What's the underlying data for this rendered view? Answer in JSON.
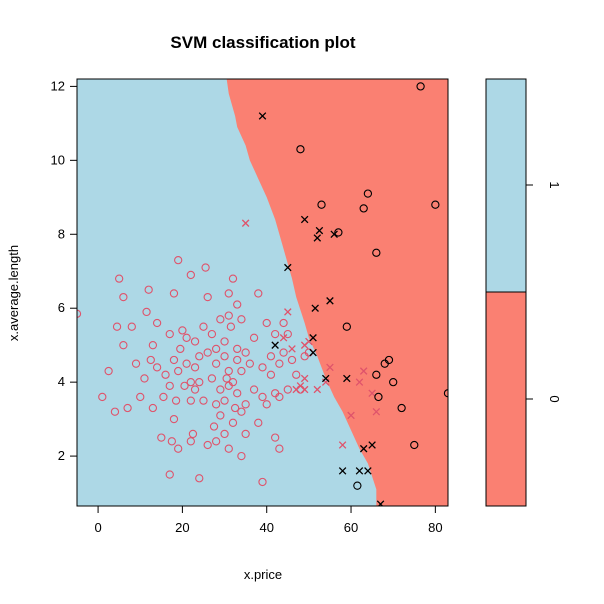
{
  "chart_data": {
    "type": "scatter",
    "title": "SVM classification plot",
    "xlabel": "x.price",
    "ylabel": "x.average.length",
    "xlim": [
      -5,
      83
    ],
    "ylim": [
      0.65,
      12.2
    ],
    "x_ticks": [
      0,
      20,
      40,
      60,
      80
    ],
    "y_ticks": [
      2,
      4,
      6,
      8,
      10,
      12
    ],
    "grid": false,
    "legend": {
      "position": "right",
      "labels": [
        "1",
        "0"
      ],
      "colors": [
        "#add8e6",
        "#fa8072"
      ]
    },
    "colors": {
      "class_1_region": "#add8e6",
      "class_0_region": "#fa8072",
      "class_1_points": "#df536b",
      "class_0_points": "#000000"
    },
    "decision_boundary": [
      [
        30.5,
        12.2
      ],
      [
        31,
        11.8
      ],
      [
        32.5,
        11.2
      ],
      [
        33,
        10.9
      ],
      [
        35,
        10.4
      ],
      [
        36,
        10.0
      ],
      [
        38,
        9.5
      ],
      [
        40,
        9.0
      ],
      [
        42,
        8.4
      ],
      [
        44,
        7.6
      ],
      [
        46,
        6.8
      ],
      [
        47,
        6.3
      ],
      [
        49,
        5.6
      ],
      [
        50,
        5.2
      ],
      [
        52,
        4.7
      ],
      [
        54,
        4.1
      ],
      [
        56,
        3.6
      ],
      [
        58,
        3.2
      ],
      [
        60,
        2.7
      ],
      [
        62,
        2.2
      ],
      [
        64,
        1.8
      ],
      [
        66,
        1.1
      ],
      [
        66,
        0.65
      ]
    ],
    "series": [
      {
        "name": "1",
        "marker": "o",
        "points": [
          [
            -5,
            5.85
          ],
          [
            1,
            3.6
          ],
          [
            2.5,
            4.3
          ],
          [
            4,
            3.2
          ],
          [
            4.5,
            5.5
          ],
          [
            5,
            6.8
          ],
          [
            6,
            5.0
          ],
          [
            6,
            6.3
          ],
          [
            7,
            3.3
          ],
          [
            8,
            5.5
          ],
          [
            9,
            4.5
          ],
          [
            10,
            3.6
          ],
          [
            11,
            4.1
          ],
          [
            11.5,
            5.9
          ],
          [
            12,
            6.5
          ],
          [
            12.5,
            4.6
          ],
          [
            13,
            3.3
          ],
          [
            13,
            5.0
          ],
          [
            14,
            4.4
          ],
          [
            14,
            5.6
          ],
          [
            15,
            2.5
          ],
          [
            15.5,
            3.6
          ],
          [
            16,
            4.2
          ],
          [
            17,
            1.5
          ],
          [
            17,
            3.9
          ],
          [
            17,
            5.3
          ],
          [
            17.5,
            2.4
          ],
          [
            18,
            3.0
          ],
          [
            18,
            4.6
          ],
          [
            18,
            6.4
          ],
          [
            18.5,
            3.5
          ],
          [
            19,
            7.3
          ],
          [
            19,
            2.2
          ],
          [
            19,
            4.3
          ],
          [
            19.5,
            4.9
          ],
          [
            20,
            5.4
          ],
          [
            20.5,
            3.9
          ],
          [
            21,
            4.5
          ],
          [
            21,
            5.2
          ],
          [
            22,
            4.0
          ],
          [
            22,
            3.5
          ],
          [
            22,
            2.4
          ],
          [
            22,
            6.9
          ],
          [
            22.5,
            2.6
          ],
          [
            23,
            3.8
          ],
          [
            23,
            5.1
          ],
          [
            23,
            4.4
          ],
          [
            24,
            4.7
          ],
          [
            24,
            1.4
          ],
          [
            24,
            4.0
          ],
          [
            25,
            3.5
          ],
          [
            25,
            5.5
          ],
          [
            25.5,
            7.1
          ],
          [
            26,
            2.3
          ],
          [
            26,
            4.8
          ],
          [
            26,
            6.3
          ],
          [
            27,
            5.3
          ],
          [
            27,
            4.1
          ],
          [
            27.5,
            2.8
          ],
          [
            28,
            3.4
          ],
          [
            28,
            2.4
          ],
          [
            28,
            4.5
          ],
          [
            28,
            4.9
          ],
          [
            29,
            3.1
          ],
          [
            29,
            3.8
          ],
          [
            29,
            5.7
          ],
          [
            30,
            3.5
          ],
          [
            30,
            4.7
          ],
          [
            30,
            5.1
          ],
          [
            30,
            2.6
          ],
          [
            30.5,
            4.1
          ],
          [
            31,
            3.9
          ],
          [
            31,
            5.8
          ],
          [
            31,
            6.4
          ],
          [
            31,
            4.3
          ],
          [
            31,
            2.2
          ],
          [
            31.5,
            5.5
          ],
          [
            32,
            4.0
          ],
          [
            32,
            6.8
          ],
          [
            32,
            2.9
          ],
          [
            32.5,
            3.3
          ],
          [
            33,
            4.6
          ],
          [
            33,
            3.7
          ],
          [
            33,
            6.1
          ],
          [
            33,
            4.9
          ],
          [
            34,
            3.2
          ],
          [
            34,
            4.3
          ],
          [
            34,
            5.7
          ],
          [
            34,
            2.0
          ],
          [
            35,
            3.4
          ],
          [
            35,
            4.8
          ],
          [
            35,
            2.6
          ],
          [
            36,
            4.5
          ],
          [
            37,
            3.8
          ],
          [
            37,
            5.2
          ],
          [
            38,
            2.9
          ],
          [
            38,
            6.4
          ],
          [
            39,
            1.3
          ],
          [
            39,
            3.6
          ],
          [
            39,
            4.4
          ],
          [
            40,
            5.6
          ],
          [
            40,
            3.4
          ],
          [
            41,
            4.7
          ],
          [
            41,
            4.2
          ],
          [
            42,
            3.7
          ],
          [
            42,
            5.3
          ],
          [
            42,
            2.5
          ],
          [
            43,
            3.6
          ],
          [
            43,
            4.5
          ],
          [
            43,
            2.2
          ],
          [
            44,
            4.8
          ],
          [
            44,
            5.6
          ],
          [
            45,
            5.3
          ],
          [
            45,
            3.8
          ],
          [
            46,
            4.6
          ],
          [
            47,
            4.2
          ],
          [
            48,
            3.8
          ],
          [
            49,
            4.7
          ],
          [
            50,
            4.8
          ]
        ]
      },
      {
        "name": "1",
        "marker": "x",
        "points": [
          [
            35,
            8.3
          ],
          [
            44,
            5.2
          ],
          [
            45,
            5.9
          ],
          [
            46,
            4.9
          ],
          [
            47,
            3.8
          ],
          [
            48,
            3.9
          ],
          [
            49,
            5.0
          ],
          [
            49,
            4.1
          ],
          [
            49,
            3.8
          ],
          [
            50,
            5.1
          ],
          [
            52,
            3.8
          ],
          [
            54,
            4.0
          ],
          [
            55,
            4.4
          ],
          [
            58,
            2.3
          ],
          [
            60,
            3.1
          ],
          [
            62,
            4.0
          ],
          [
            63,
            4.3
          ],
          [
            65,
            3.7
          ],
          [
            66,
            3.2
          ]
        ]
      },
      {
        "name": "0",
        "marker": "o",
        "points": [
          [
            48,
            10.3
          ],
          [
            53,
            8.8
          ],
          [
            57,
            8.05
          ],
          [
            59,
            5.5
          ],
          [
            61.5,
            1.2
          ],
          [
            63,
            8.7
          ],
          [
            64,
            9.1
          ],
          [
            66,
            7.5
          ],
          [
            66,
            4.2
          ],
          [
            66.5,
            3.6
          ],
          [
            68,
            4.5
          ],
          [
            69,
            4.6
          ],
          [
            70,
            4.0
          ],
          [
            72,
            3.3
          ],
          [
            75,
            2.3
          ],
          [
            76.5,
            12.0
          ],
          [
            80,
            8.8
          ],
          [
            83,
            3.7
          ]
        ]
      },
      {
        "name": "0",
        "marker": "x",
        "points": [
          [
            39,
            11.2
          ],
          [
            42,
            5.0
          ],
          [
            45,
            7.1
          ],
          [
            49,
            8.4
          ],
          [
            51,
            5.2
          ],
          [
            51,
            4.8
          ],
          [
            51.5,
            6.0
          ],
          [
            52,
            7.9
          ],
          [
            52.5,
            8.1
          ],
          [
            54,
            4.1
          ],
          [
            55,
            6.2
          ],
          [
            56,
            8.0
          ],
          [
            58,
            1.6
          ],
          [
            59,
            4.1
          ],
          [
            62,
            1.6
          ],
          [
            63,
            2.2
          ],
          [
            64,
            1.6
          ],
          [
            65,
            2.3
          ],
          [
            67,
            0.7
          ]
        ]
      }
    ]
  }
}
